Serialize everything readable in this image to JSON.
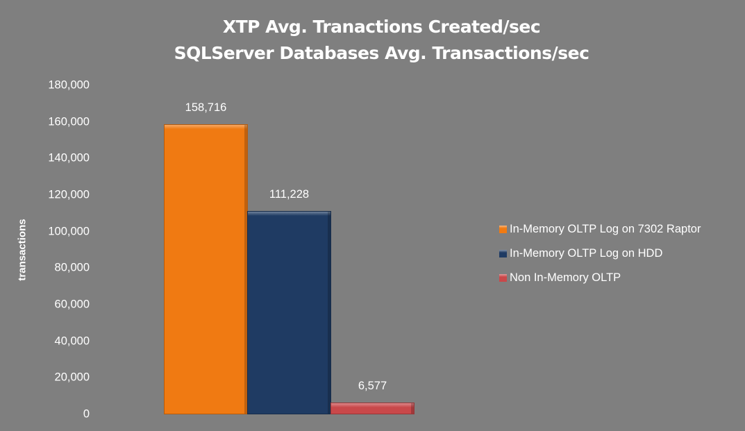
{
  "chart_data": {
    "type": "bar",
    "title": "XTP Avg. Tranactions Created/sec\nSQLServer Databases Avg. Transactions/sec",
    "title_lines": [
      "XTP Avg. Tranactions Created/sec",
      "SQLServer Databases Avg. Transactions/sec"
    ],
    "xlabel": "",
    "ylabel": "transactions",
    "ylim": [
      0,
      180000
    ],
    "yticks": [
      0,
      20000,
      40000,
      60000,
      80000,
      100000,
      120000,
      140000,
      160000,
      180000
    ],
    "ytick_labels": [
      "0",
      "20,000",
      "40,000",
      "60,000",
      "80,000",
      "100,000",
      "120,000",
      "140,000",
      "160,000",
      "180,000"
    ],
    "grid": false,
    "legend_position": "right",
    "categories": [
      ""
    ],
    "series": [
      {
        "name": "In-Memory OLTP Log on 7302 Raptor",
        "values": [
          158716
        ],
        "label": "158,716",
        "color": "#f07a12"
      },
      {
        "name": "In-Memory OLTP Log on HDD",
        "values": [
          111228
        ],
        "label": "111,228",
        "color": "#1f3b63"
      },
      {
        "name": "Non In-Memory OLTP",
        "values": [
          6577
        ],
        "label": "6,577",
        "color": "#c9484a"
      }
    ]
  },
  "colors": {
    "background": "#7f7f7f",
    "text": "#ffffff"
  }
}
